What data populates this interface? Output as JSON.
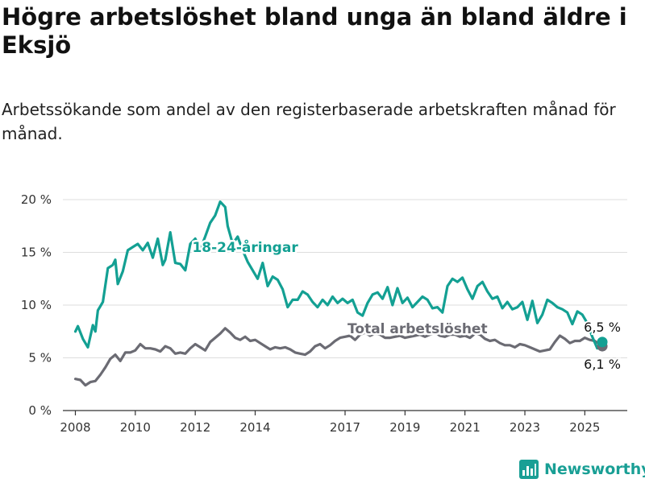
{
  "title": "Högre arbetslöshet bland unga än bland äldre i Eksjö",
  "subtitle": "Arbetssökande som andel av den registerbaserade arbetskraften månad för månad.",
  "logo": {
    "text": "Newsworthy",
    "icon": "bar-chart-logo-icon"
  },
  "colors": {
    "youth": "#13a093",
    "total": "#6b6b73",
    "grid": "#dddddd",
    "axis": "#333333"
  },
  "chart_data": {
    "type": "line",
    "title": "Högre arbetslöshet bland unga än bland äldre i Eksjö",
    "subtitle": "Arbetssökande som andel av den registerbaserade arbetskraften månad för månad.",
    "xlabel": "",
    "ylabel": "",
    "ylim": [
      0,
      20
    ],
    "xlim": [
      "2007-08",
      "2026-06"
    ],
    "grid": true,
    "y_ticks": [
      {
        "value": 0,
        "label": "0 %"
      },
      {
        "value": 5,
        "label": "5 %"
      },
      {
        "value": 10,
        "label": "10 %"
      },
      {
        "value": 15,
        "label": "15 %"
      },
      {
        "value": 20,
        "label": "20 %"
      }
    ],
    "x_ticks": [
      {
        "value": "2008-01",
        "label": "2008"
      },
      {
        "value": "2010-01",
        "label": "2010"
      },
      {
        "value": "2012-01",
        "label": "2012"
      },
      {
        "value": "2014-01",
        "label": "2014"
      },
      {
        "value": "2017-01",
        "label": "2017"
      },
      {
        "value": "2019-01",
        "label": "2019"
      },
      {
        "value": "2021-01",
        "label": "2021"
      },
      {
        "value": "2023-01",
        "label": "2023"
      },
      {
        "value": "2025-01",
        "label": "2025"
      }
    ],
    "series": [
      {
        "name": "18-24-åringar",
        "color": "#13a093",
        "end_label": "6,5 %",
        "x": [
          "2008-01",
          "2008-02",
          "2008-04",
          "2008-06",
          "2008-08",
          "2008-09",
          "2008-10",
          "2008-12",
          "2009-02",
          "2009-04",
          "2009-05",
          "2009-06",
          "2009-08",
          "2009-10",
          "2009-12",
          "2010-02",
          "2010-04",
          "2010-06",
          "2010-08",
          "2010-10",
          "2010-12",
          "2011-01",
          "2011-03",
          "2011-05",
          "2011-07",
          "2011-09",
          "2011-11",
          "2012-01",
          "2012-03",
          "2012-05",
          "2012-07",
          "2012-09",
          "2012-11",
          "2013-01",
          "2013-02",
          "2013-04",
          "2013-06",
          "2013-08",
          "2013-10",
          "2013-12",
          "2014-02",
          "2014-04",
          "2014-06",
          "2014-08",
          "2014-10",
          "2014-12",
          "2015-02",
          "2015-04",
          "2015-06",
          "2015-08",
          "2015-10",
          "2015-12",
          "2016-02",
          "2016-04",
          "2016-06",
          "2016-08",
          "2016-10",
          "2016-12",
          "2017-02",
          "2017-04",
          "2017-06",
          "2017-08",
          "2017-10",
          "2017-12",
          "2018-02",
          "2018-04",
          "2018-06",
          "2018-08",
          "2018-10",
          "2018-12",
          "2019-02",
          "2019-04",
          "2019-06",
          "2019-08",
          "2019-10",
          "2019-12",
          "2020-02",
          "2020-04",
          "2020-06",
          "2020-08",
          "2020-10",
          "2020-12",
          "2021-02",
          "2021-04",
          "2021-06",
          "2021-08",
          "2021-10",
          "2021-12",
          "2022-02",
          "2022-04",
          "2022-06",
          "2022-08",
          "2022-10",
          "2022-12",
          "2023-02",
          "2023-04",
          "2023-06",
          "2023-08",
          "2023-10",
          "2023-12",
          "2024-02",
          "2024-04",
          "2024-06",
          "2024-08",
          "2024-10",
          "2024-12",
          "2025-02",
          "2025-04",
          "2025-06",
          "2025-08"
        ],
        "values": [
          7.5,
          8.0,
          6.8,
          6.0,
          8.1,
          7.5,
          9.5,
          10.3,
          13.5,
          13.8,
          14.3,
          12.0,
          13.2,
          15.2,
          15.5,
          15.8,
          15.2,
          15.9,
          14.5,
          16.3,
          13.8,
          14.3,
          16.9,
          14.0,
          13.9,
          13.3,
          15.8,
          16.3,
          15.3,
          16.5,
          17.8,
          18.5,
          19.8,
          19.3,
          17.5,
          15.8,
          16.5,
          15.2,
          14.1,
          13.3,
          12.5,
          14.0,
          11.8,
          12.7,
          12.4,
          11.5,
          9.8,
          10.5,
          10.5,
          11.3,
          11.0,
          10.3,
          9.8,
          10.5,
          10.0,
          10.8,
          10.2,
          10.6,
          10.2,
          10.5,
          9.3,
          9.0,
          10.2,
          11.0,
          11.2,
          10.6,
          11.7,
          10.0,
          11.6,
          10.2,
          10.7,
          9.8,
          10.3,
          10.8,
          10.5,
          9.7,
          9.8,
          9.3,
          11.8,
          12.5,
          12.2,
          12.6,
          11.5,
          10.6,
          11.8,
          12.2,
          11.3,
          10.6,
          10.8,
          9.7,
          10.3,
          9.6,
          9.8,
          10.3,
          8.6,
          10.4,
          8.3,
          9.1,
          10.5,
          10.2,
          9.8,
          9.6,
          9.3,
          8.2,
          9.4,
          9.1,
          8.3,
          7.0,
          5.9,
          6.5
        ]
      },
      {
        "name": "Total arbetslöshet",
        "color": "#6b6b73",
        "end_label": "6,1 %",
        "x": [
          "2008-01",
          "2008-03",
          "2008-05",
          "2008-07",
          "2008-09",
          "2008-11",
          "2009-01",
          "2009-03",
          "2009-05",
          "2009-07",
          "2009-09",
          "2009-11",
          "2010-01",
          "2010-03",
          "2010-05",
          "2010-07",
          "2010-09",
          "2010-11",
          "2011-01",
          "2011-03",
          "2011-05",
          "2011-07",
          "2011-09",
          "2011-11",
          "2012-01",
          "2012-03",
          "2012-05",
          "2012-07",
          "2012-09",
          "2012-11",
          "2013-01",
          "2013-03",
          "2013-05",
          "2013-07",
          "2013-09",
          "2013-11",
          "2014-01",
          "2014-03",
          "2014-05",
          "2014-07",
          "2014-09",
          "2014-11",
          "2015-01",
          "2015-03",
          "2015-05",
          "2015-07",
          "2015-09",
          "2015-11",
          "2016-01",
          "2016-03",
          "2016-05",
          "2016-07",
          "2016-09",
          "2016-11",
          "2017-01",
          "2017-03",
          "2017-05",
          "2017-07",
          "2017-09",
          "2017-11",
          "2018-01",
          "2018-03",
          "2018-05",
          "2018-07",
          "2018-09",
          "2018-11",
          "2019-01",
          "2019-03",
          "2019-05",
          "2019-07",
          "2019-09",
          "2019-11",
          "2020-01",
          "2020-03",
          "2020-05",
          "2020-07",
          "2020-09",
          "2020-11",
          "2021-01",
          "2021-03",
          "2021-05",
          "2021-07",
          "2021-09",
          "2021-11",
          "2022-01",
          "2022-03",
          "2022-05",
          "2022-07",
          "2022-09",
          "2022-11",
          "2023-01",
          "2023-03",
          "2023-05",
          "2023-07",
          "2023-09",
          "2023-11",
          "2024-01",
          "2024-03",
          "2024-05",
          "2024-07",
          "2024-09",
          "2024-11",
          "2025-01",
          "2025-03",
          "2025-05",
          "2025-08"
        ],
        "values": [
          3.0,
          2.9,
          2.4,
          2.7,
          2.8,
          3.4,
          4.1,
          4.9,
          5.3,
          4.7,
          5.5,
          5.5,
          5.7,
          6.3,
          5.9,
          5.9,
          5.8,
          5.6,
          6.1,
          5.9,
          5.4,
          5.5,
          5.4,
          5.9,
          6.3,
          6.0,
          5.7,
          6.5,
          6.9,
          7.3,
          7.8,
          7.4,
          6.9,
          6.7,
          7.0,
          6.6,
          6.7,
          6.4,
          6.1,
          5.8,
          6.0,
          5.9,
          6.0,
          5.8,
          5.5,
          5.4,
          5.3,
          5.6,
          6.1,
          6.3,
          5.9,
          6.2,
          6.6,
          6.9,
          7.0,
          7.1,
          6.7,
          7.2,
          7.4,
          7.1,
          7.3,
          7.2,
          6.9,
          6.9,
          7.0,
          7.1,
          6.9,
          7.0,
          7.1,
          7.2,
          7.0,
          7.2,
          7.4,
          7.1,
          7.0,
          7.2,
          7.2,
          7.0,
          7.1,
          6.9,
          7.3,
          7.2,
          6.8,
          6.6,
          6.7,
          6.4,
          6.2,
          6.2,
          6.0,
          6.3,
          6.2,
          6.0,
          5.8,
          5.6,
          5.7,
          5.8,
          6.5,
          7.1,
          6.8,
          6.4,
          6.6,
          6.6,
          6.9,
          6.7,
          6.6,
          6.1
        ]
      }
    ],
    "annotations": [
      {
        "text": "18-24-åringar",
        "series": "18-24-åringar",
        "at": "2013-09",
        "value": 15.5
      },
      {
        "text": "Total arbetslöshet",
        "series": "Total arbetslöshet",
        "at": "2019-06",
        "value": 7.8
      }
    ]
  }
}
